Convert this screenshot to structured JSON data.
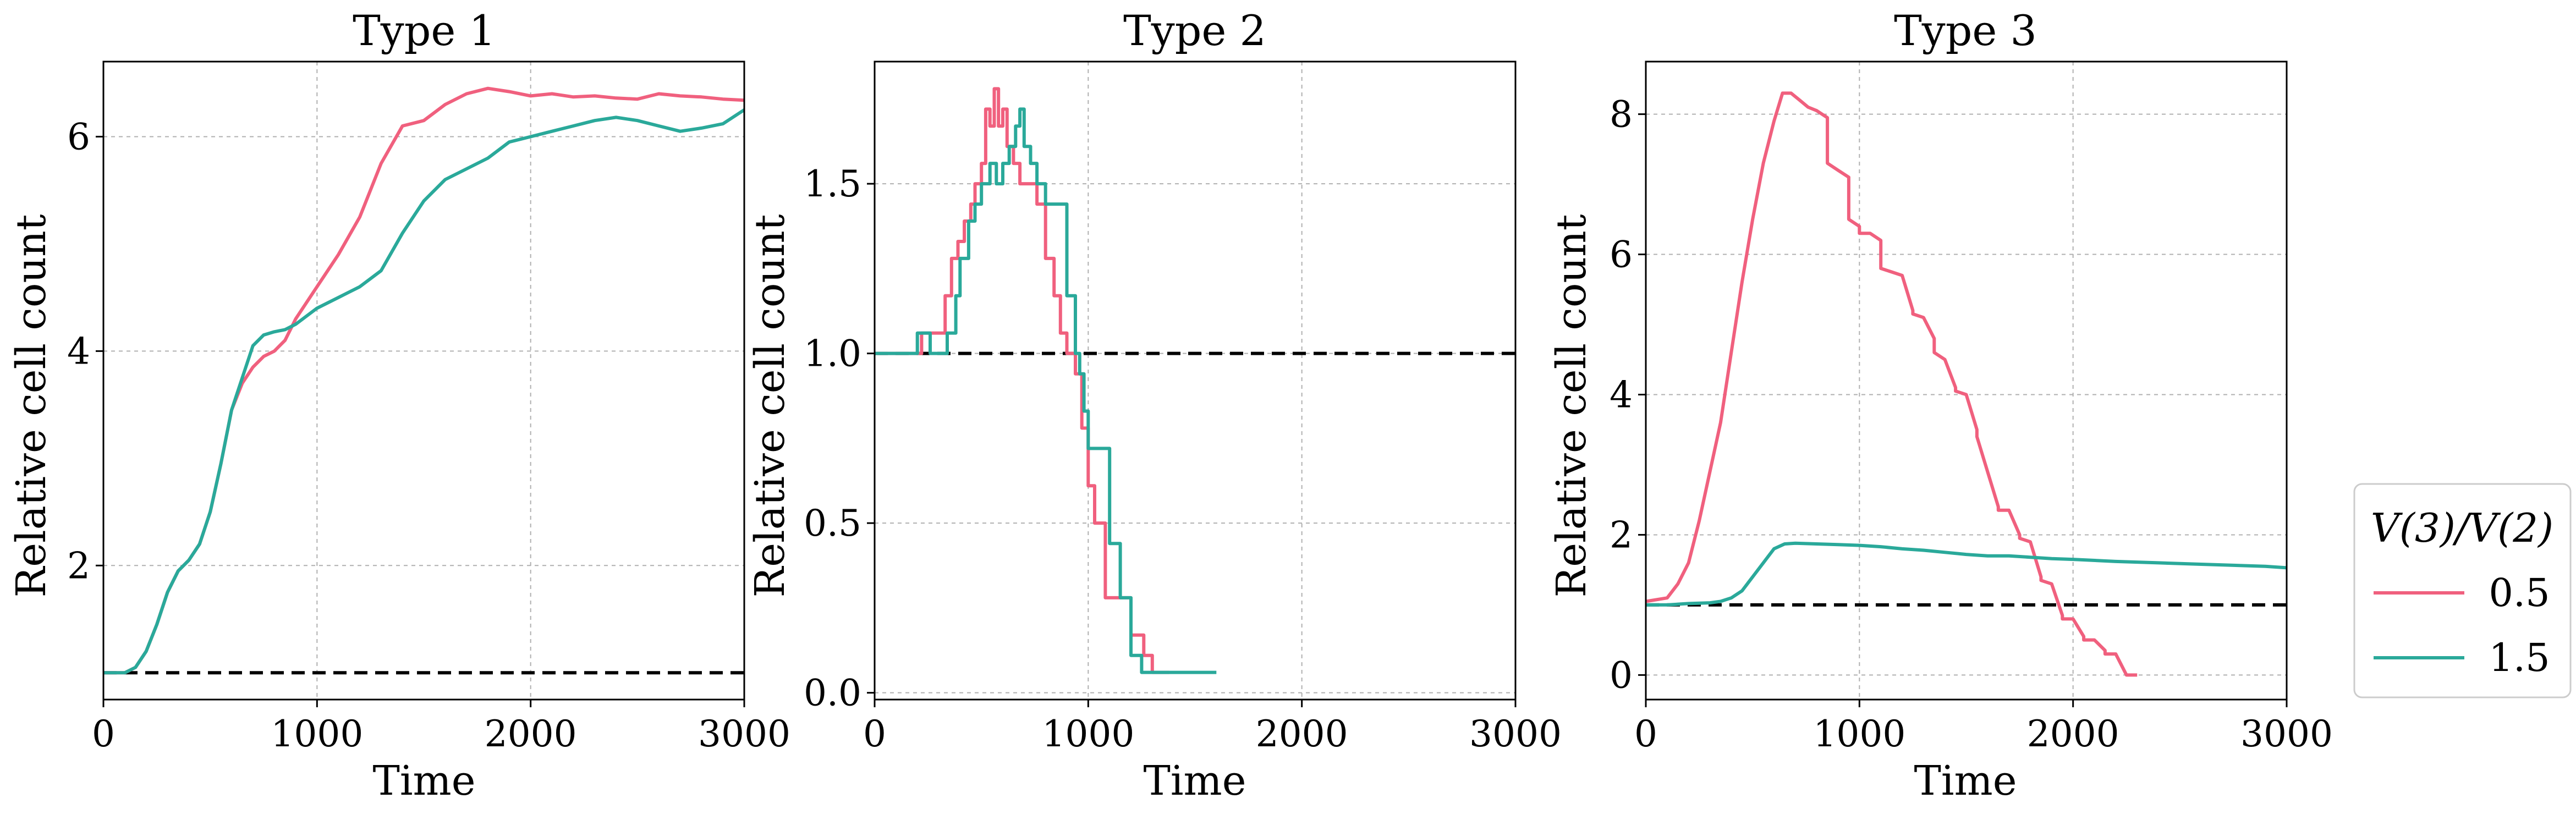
{
  "legend": {
    "title": "V(3)/V(2)",
    "entries": [
      {
        "label": "0.5",
        "color": "#f0607e"
      },
      {
        "label": "1.5",
        "color": "#2aa99a"
      }
    ]
  },
  "chart_data": [
    {
      "type": "line",
      "title": "Type 1",
      "xlabel": "Time",
      "ylabel": "Relative cell count",
      "xlim": [
        0,
        3000
      ],
      "ylim": [
        0.75,
        6.7
      ],
      "xticks": [
        0,
        1000,
        2000,
        3000
      ],
      "yticks": [
        2,
        4,
        6
      ],
      "ytick_labels": [
        "2",
        "4",
        "6"
      ],
      "grid": true,
      "reference_line": {
        "y": 1.0,
        "style": "dashed",
        "color": "#000000"
      },
      "series": [
        {
          "name": "0.5",
          "color": "#f0607e",
          "x": [
            0,
            100,
            150,
            200,
            250,
            300,
            350,
            400,
            450,
            500,
            550,
            600,
            650,
            700,
            750,
            800,
            850,
            900,
            1000,
            1100,
            1200,
            1300,
            1400,
            1500,
            1600,
            1700,
            1800,
            1900,
            2000,
            2100,
            2200,
            2300,
            2400,
            2500,
            2600,
            2700,
            2800,
            2900,
            3000
          ],
          "y": [
            1.0,
            1.0,
            1.05,
            1.2,
            1.45,
            1.75,
            1.95,
            2.05,
            2.2,
            2.5,
            2.95,
            3.45,
            3.7,
            3.85,
            3.95,
            4.0,
            4.1,
            4.3,
            4.6,
            4.9,
            5.25,
            5.75,
            6.1,
            6.15,
            6.3,
            6.4,
            6.45,
            6.42,
            6.38,
            6.4,
            6.37,
            6.38,
            6.36,
            6.35,
            6.4,
            6.38,
            6.37,
            6.35,
            6.34
          ]
        },
        {
          "name": "1.5",
          "color": "#2aa99a",
          "x": [
            0,
            100,
            150,
            200,
            250,
            300,
            350,
            400,
            450,
            500,
            550,
            600,
            650,
            700,
            750,
            800,
            850,
            900,
            1000,
            1100,
            1200,
            1300,
            1400,
            1500,
            1600,
            1700,
            1800,
            1900,
            2000,
            2100,
            2200,
            2300,
            2400,
            2500,
            2600,
            2700,
            2800,
            2900,
            3000
          ],
          "y": [
            1.0,
            1.0,
            1.05,
            1.2,
            1.45,
            1.75,
            1.95,
            2.05,
            2.2,
            2.5,
            2.95,
            3.45,
            3.75,
            4.05,
            4.15,
            4.18,
            4.2,
            4.25,
            4.4,
            4.5,
            4.6,
            4.75,
            5.1,
            5.4,
            5.6,
            5.7,
            5.8,
            5.95,
            6.0,
            6.05,
            6.1,
            6.15,
            6.18,
            6.15,
            6.1,
            6.05,
            6.08,
            6.12,
            6.25
          ]
        }
      ]
    },
    {
      "type": "line",
      "title": "Type 2",
      "xlabel": "Time",
      "ylabel": "Relative cell count",
      "xlim": [
        0,
        3000
      ],
      "ylim": [
        -0.02,
        1.86
      ],
      "xticks": [
        0,
        1000,
        2000,
        3000
      ],
      "yticks": [
        0.0,
        0.5,
        1.0,
        1.5
      ],
      "ytick_labels": [
        "0.0",
        "0.5",
        "1.0",
        "1.5"
      ],
      "grid": true,
      "reference_line": {
        "y": 1.0,
        "style": "dashed",
        "color": "#000000"
      },
      "series": [
        {
          "name": "0.5",
          "color": "#f0607e",
          "step": true,
          "x": [
            0,
            220,
            280,
            330,
            360,
            390,
            420,
            450,
            470,
            500,
            520,
            540,
            560,
            580,
            600,
            620,
            650,
            680,
            720,
            760,
            800,
            840,
            870,
            900,
            940,
            970,
            1000,
            1030,
            1080,
            1120,
            1200,
            1260,
            1300,
            1350,
            1380
          ],
          "y": [
            1.0,
            1.06,
            1.06,
            1.17,
            1.28,
            1.33,
            1.39,
            1.44,
            1.5,
            1.56,
            1.72,
            1.67,
            1.78,
            1.67,
            1.72,
            1.61,
            1.56,
            1.5,
            1.5,
            1.44,
            1.28,
            1.17,
            1.06,
            1.0,
            0.94,
            0.78,
            0.61,
            0.5,
            0.28,
            0.28,
            0.17,
            0.11,
            0.06,
            0.06,
            0.06
          ]
        },
        {
          "name": "1.5",
          "color": "#2aa99a",
          "step": true,
          "x": [
            0,
            200,
            260,
            340,
            380,
            400,
            440,
            470,
            500,
            540,
            570,
            600,
            630,
            660,
            680,
            700,
            730,
            760,
            800,
            850,
            900,
            940,
            960,
            980,
            1000,
            1100,
            1150,
            1200,
            1250,
            1300,
            1400,
            1500,
            1600
          ],
          "y": [
            1.0,
            1.06,
            1.0,
            1.06,
            1.17,
            1.28,
            1.39,
            1.44,
            1.5,
            1.56,
            1.5,
            1.56,
            1.61,
            1.67,
            1.72,
            1.61,
            1.56,
            1.5,
            1.44,
            1.44,
            1.17,
            1.0,
            0.94,
            0.83,
            0.72,
            0.44,
            0.28,
            0.11,
            0.06,
            0.06,
            0.06,
            0.06,
            0.06
          ]
        }
      ]
    },
    {
      "type": "line",
      "title": "Type 3",
      "xlabel": "Time",
      "ylabel": "Relative cell count",
      "xlim": [
        0,
        3000
      ],
      "ylim": [
        -0.35,
        8.75
      ],
      "xticks": [
        0,
        1000,
        2000,
        3000
      ],
      "yticks": [
        0,
        2,
        4,
        6,
        8
      ],
      "ytick_labels": [
        "0",
        "2",
        "4",
        "6",
        "8"
      ],
      "grid": true,
      "reference_line": {
        "y": 1.0,
        "style": "dashed",
        "color": "#000000"
      },
      "series": [
        {
          "name": "0.5",
          "color": "#f0607e",
          "x": [
            0,
            100,
            150,
            200,
            250,
            300,
            350,
            400,
            450,
            500,
            550,
            600,
            640,
            680,
            720,
            760,
            800,
            850,
            850,
            900,
            950,
            950,
            1000,
            1000,
            1050,
            1100,
            1100,
            1150,
            1200,
            1250,
            1250,
            1300,
            1350,
            1350,
            1400,
            1450,
            1450,
            1500,
            1550,
            1550,
            1600,
            1650,
            1650,
            1700,
            1750,
            1750,
            1800,
            1850,
            1850,
            1900,
            1950,
            1950,
            2000,
            2050,
            2050,
            2100,
            2150,
            2150,
            2200,
            2250,
            2300
          ],
          "y": [
            1.05,
            1.1,
            1.3,
            1.6,
            2.2,
            2.9,
            3.6,
            4.6,
            5.6,
            6.5,
            7.3,
            7.9,
            8.3,
            8.3,
            8.2,
            8.1,
            8.05,
            7.95,
            7.3,
            7.2,
            7.1,
            6.5,
            6.4,
            6.3,
            6.3,
            6.2,
            5.8,
            5.75,
            5.7,
            5.2,
            5.15,
            5.1,
            4.8,
            4.6,
            4.5,
            4.1,
            4.05,
            4.0,
            3.5,
            3.4,
            2.9,
            2.4,
            2.35,
            2.35,
            2.0,
            1.95,
            1.9,
            1.4,
            1.35,
            1.3,
            0.85,
            0.8,
            0.8,
            0.55,
            0.5,
            0.5,
            0.35,
            0.3,
            0.3,
            0.0,
            0.0
          ]
        },
        {
          "name": "1.5",
          "color": "#2aa99a",
          "x": [
            0,
            100,
            200,
            300,
            350,
            400,
            450,
            500,
            550,
            600,
            650,
            700,
            800,
            900,
            1000,
            1100,
            1200,
            1300,
            1400,
            1500,
            1600,
            1700,
            1800,
            1900,
            2000,
            2200,
            2400,
            2600,
            2800,
            2900,
            3000
          ],
          "y": [
            1.0,
            1.0,
            1.02,
            1.03,
            1.05,
            1.1,
            1.2,
            1.4,
            1.6,
            1.8,
            1.87,
            1.88,
            1.87,
            1.86,
            1.85,
            1.83,
            1.8,
            1.78,
            1.75,
            1.72,
            1.7,
            1.7,
            1.68,
            1.66,
            1.65,
            1.62,
            1.6,
            1.58,
            1.56,
            1.55,
            1.53
          ]
        }
      ]
    }
  ]
}
